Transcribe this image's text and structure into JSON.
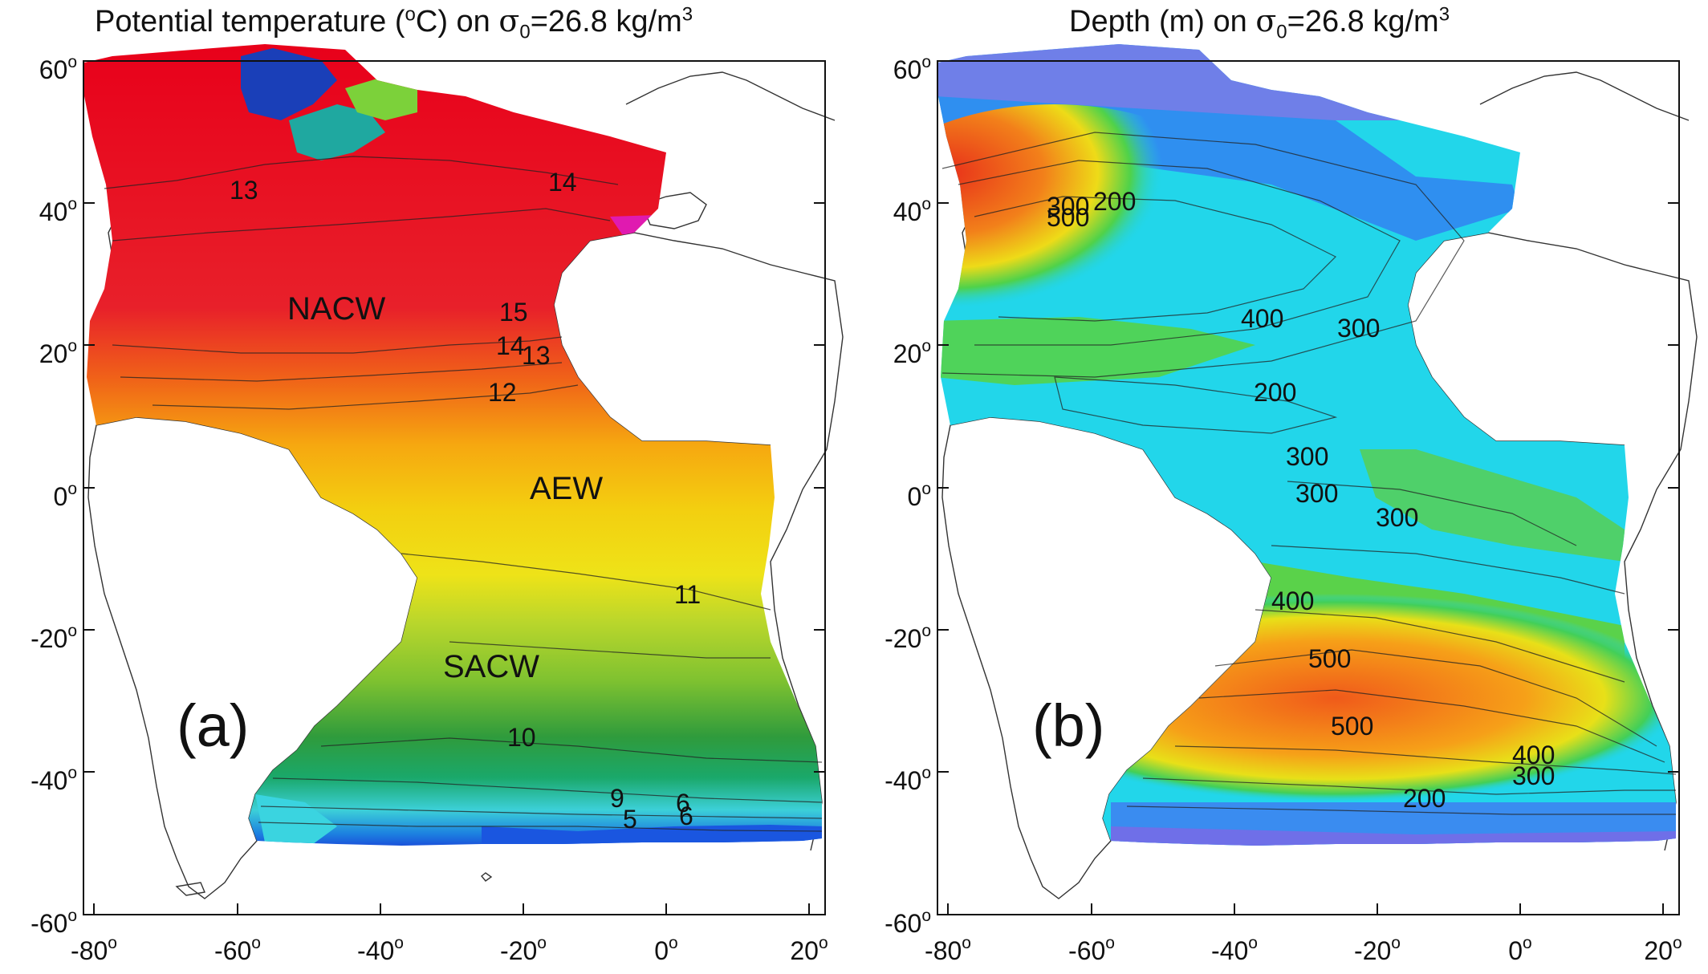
{
  "panels": [
    {
      "id": "a",
      "title": {
        "prefix": "Potential temperature (",
        "degree": "o",
        "unit_rest": "C) on ",
        "sigma": "σ",
        "sigma_sub": "0",
        "value": "=26.8 kg/m",
        "cubed": "3"
      },
      "panel_letter": "(a)",
      "water_masses": [
        "NACW",
        "AEW",
        "SACW"
      ],
      "contour_labels": [
        "13",
        "14",
        "15",
        "14",
        "13",
        "12",
        "11",
        "10",
        "9",
        "5",
        "6",
        "6"
      ],
      "colormap": "warm red (north) → yellow → green → cyan/blue (south)"
    },
    {
      "id": "b",
      "title": {
        "prefix": "Depth (m) on ",
        "sigma": "σ",
        "sigma_sub": "0",
        "value": "=26.8 kg/m",
        "cubed": "3"
      },
      "panel_letter": "(b)",
      "contour_labels": [
        "300",
        "500",
        "200",
        "400",
        "300",
        "200",
        "300",
        "300",
        "300",
        "400",
        "500",
        "500",
        "400",
        "300",
        "200"
      ],
      "colormap": "blue/purple (shallow) → cyan → green → yellow → red (deep)"
    }
  ],
  "axes": {
    "lon_ticks": [
      "-80",
      "-60",
      "-40",
      "-20",
      "0",
      "20"
    ],
    "lat_ticks": [
      "60",
      "40",
      "20",
      "0",
      "-20",
      "-40",
      "-60"
    ],
    "degree_mark": "o"
  }
}
